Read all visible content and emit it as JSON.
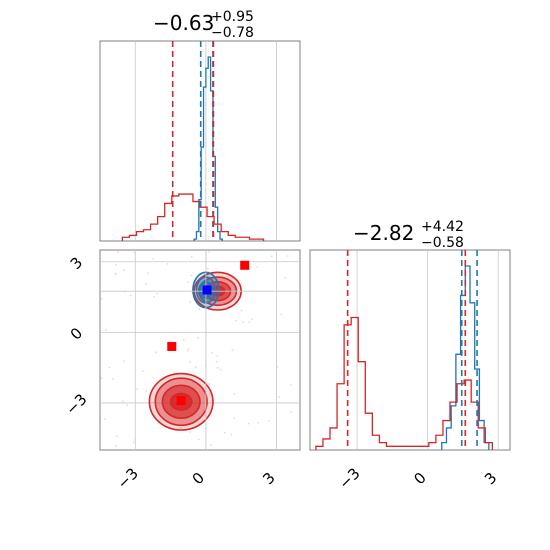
{
  "colors": {
    "blue": "#1f77b4",
    "red": "#d62728",
    "marker_red": "#ff0000",
    "marker_blue": "#0000ff",
    "grid": "#c8c8c8",
    "axes": "#808080"
  },
  "chart_data": {
    "type": "corner",
    "grid": true,
    "tick_labels": [
      "−3",
      "0",
      "3"
    ],
    "tick_values": [
      -3,
      0,
      3
    ],
    "panels": [
      {
        "id": "hist-param1",
        "type": "step-histogram",
        "title_value": "−0.63",
        "title_sup": "+0.95",
        "title_sub": "−0.78",
        "xlim": [
          -4.5,
          4.0
        ],
        "series": [
          {
            "name": "",
            "color": "#1f77b4",
            "bin_centers": [
              -0.45,
              -0.35,
              -0.25,
              -0.15,
              -0.05,
              0.05,
              0.15,
              0.25,
              0.35,
              0.45,
              0.55,
              0.65
            ],
            "counts": [
              0.01,
              0.05,
              0.22,
              0.5,
              0.82,
              0.92,
              0.98,
              0.8,
              0.45,
              0.18,
              0.05,
              0.01
            ],
            "quantile_lines": [
              -0.22,
              0.3
            ],
            "median": 0.05
          },
          {
            "name": "",
            "color": "#d62728",
            "bin_centers": [
              -3.4,
              -3.1,
              -2.8,
              -2.5,
              -2.2,
              -1.9,
              -1.6,
              -1.3,
              -1.0,
              -0.7,
              -0.4,
              -0.1,
              0.2,
              0.5,
              0.8,
              1.1,
              1.4,
              1.7,
              2.0,
              2.3
            ],
            "counts": [
              0.02,
              0.03,
              0.05,
              0.06,
              0.09,
              0.13,
              0.2,
              0.24,
              0.25,
              0.25,
              0.21,
              0.18,
              0.13,
              0.09,
              0.05,
              0.03,
              0.02,
              0.02,
              0.01,
              0.01
            ],
            "quantile_lines": [
              -1.41,
              0.32
            ],
            "median": -0.63
          }
        ]
      },
      {
        "id": "hist-param2",
        "type": "step-histogram",
        "title_value": "−2.82",
        "title_sup": "+4.42",
        "title_sub": "−0.58",
        "xlim": [
          -5.0,
          3.5
        ],
        "series": [
          {
            "name": "",
            "color": "#1f77b4",
            "bin_centers": [
              0.7,
              0.9,
              1.1,
              1.3,
              1.5,
              1.7,
              1.9,
              2.1,
              2.3,
              2.5
            ],
            "counts": [
              0.02,
              0.06,
              0.12,
              0.26,
              0.42,
              0.5,
              0.4,
              0.22,
              0.08,
              0.02
            ],
            "quantile_lines": [
              1.45,
              2.1
            ],
            "median": 1.75
          },
          {
            "name": "",
            "color": "#d62728",
            "bin_centers": [
              -4.6,
              -4.3,
              -4.0,
              -3.7,
              -3.4,
              -3.1,
              -2.8,
              -2.5,
              -2.2,
              -1.9,
              -1.6,
              -1.3,
              -1.0,
              -0.7,
              -0.4,
              -0.1,
              0.2,
              0.5,
              0.8,
              1.1,
              1.4,
              1.7,
              2.0,
              2.3,
              2.6
            ],
            "counts": [
              0.01,
              0.03,
              0.06,
              0.18,
              0.34,
              0.36,
              0.24,
              0.1,
              0.04,
              0.02,
              0.01,
              0.01,
              0.01,
              0.01,
              0.01,
              0.01,
              0.02,
              0.04,
              0.08,
              0.13,
              0.18,
              0.19,
              0.13,
              0.06,
              0.02
            ],
            "quantile_lines": [
              -3.4,
              1.6
            ],
            "median": -2.82
          }
        ]
      },
      {
        "id": "contour-2d",
        "type": "contour",
        "xlim": [
          -4.5,
          4.0
        ],
        "ylim": [
          -5.0,
          3.5
        ],
        "blobs": [
          {
            "color": "#d62728",
            "cx": 0.5,
            "cy": 1.75,
            "rx": [
              1.0,
              0.8,
              0.55,
              0.3
            ],
            "ry": [
              0.8,
              0.6,
              0.4,
              0.2
            ]
          },
          {
            "color": "#1f77b4",
            "cx": 0.0,
            "cy": 1.8,
            "rx": [
              0.55,
              0.4,
              0.25
            ],
            "ry": [
              0.75,
              0.55,
              0.35
            ]
          },
          {
            "color": "#d62728",
            "cx": -1.05,
            "cy": -2.95,
            "rx": [
              1.35,
              1.1,
              0.8,
              0.45
            ],
            "ry": [
              1.2,
              1.0,
              0.7,
              0.35
            ]
          }
        ],
        "markers": [
          {
            "color": "#ff0000",
            "x": 1.65,
            "y": 2.85
          },
          {
            "color": "#ff0000",
            "x": -1.45,
            "y": -0.6
          },
          {
            "color": "#ff0000",
            "x": -1.05,
            "y": -2.9
          },
          {
            "color": "#0000ff",
            "x": 0.05,
            "y": 1.8
          }
        ],
        "crosshair": {
          "x": 0.0,
          "y": 1.75
        }
      }
    ]
  }
}
